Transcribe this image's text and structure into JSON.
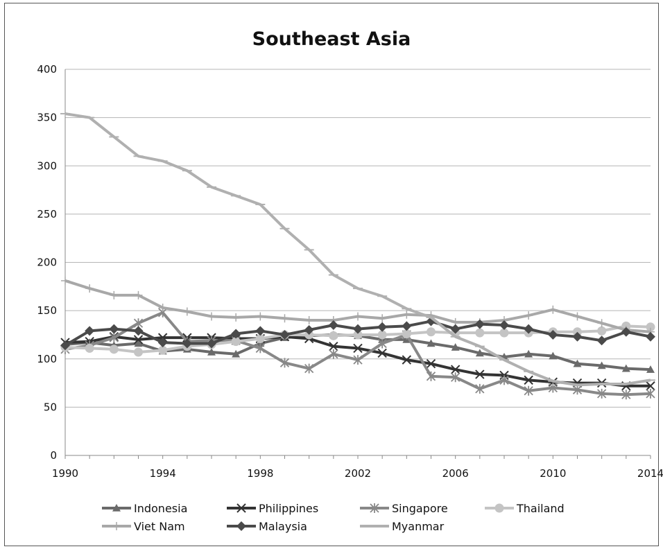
{
  "chart_data": {
    "type": "line",
    "title": "Southeast Asia",
    "xlabel": "",
    "ylabel": "",
    "xlim": [
      1990,
      2014
    ],
    "ylim": [
      0,
      400
    ],
    "x_ticks": [
      "1990",
      "1994",
      "1998",
      "2002",
      "2006",
      "2010",
      "2014"
    ],
    "y_ticks": [
      "0",
      "50",
      "100",
      "150",
      "200",
      "250",
      "300",
      "350",
      "400"
    ],
    "grid": "horizontal",
    "legend_position": "bottom",
    "x": [
      1990,
      1991,
      1992,
      1993,
      1994,
      1995,
      1996,
      1997,
      1998,
      1999,
      2000,
      2001,
      2002,
      2003,
      2004,
      2005,
      2006,
      2007,
      2008,
      2009,
      2010,
      2011,
      2012,
      2013,
      2014
    ],
    "series": [
      {
        "name": "Indonesia",
        "marker": "triangle",
        "color": "#6a6a6a",
        "values": [
          115,
          117,
          114,
          116,
          108,
          110,
          107,
          105,
          116,
          122,
          124,
          125,
          124,
          120,
          120,
          116,
          112,
          106,
          102,
          105,
          103,
          95,
          93,
          90,
          89
        ]
      },
      {
        "name": "Philippines",
        "marker": "x",
        "color": "#333333",
        "values": [
          117,
          118,
          123,
          120,
          122,
          122,
          122,
          121,
          121,
          123,
          121,
          113,
          111,
          106,
          99,
          95,
          89,
          84,
          83,
          78,
          76,
          75,
          75,
          72,
          72
        ]
      },
      {
        "name": "Singapore",
        "marker": "asterisk",
        "color": "#888888",
        "values": [
          110,
          114,
          122,
          137,
          148,
          118,
          119,
          119,
          111,
          96,
          90,
          105,
          99,
          116,
          125,
          82,
          81,
          69,
          78,
          67,
          70,
          68,
          64,
          63,
          64
        ]
      },
      {
        "name": "Thailand",
        "marker": "circle",
        "color": "#c4c4c4",
        "values": [
          112,
          111,
          110,
          107,
          109,
          113,
          115,
          118,
          121,
          125,
          125,
          124,
          125,
          125,
          126,
          128,
          127,
          127,
          127,
          127,
          128,
          128,
          129,
          134,
          133
        ]
      },
      {
        "name": "Viet Nam",
        "marker": "plus",
        "color": "#a8a8a8",
        "values": [
          181,
          173,
          166,
          166,
          153,
          149,
          144,
          143,
          144,
          142,
          140,
          140,
          144,
          142,
          146,
          145,
          138,
          138,
          140,
          145,
          151,
          144,
          137,
          130,
          128
        ]
      },
      {
        "name": "Malaysia",
        "marker": "diamond",
        "color": "#4a4a4a",
        "values": [
          114,
          129,
          131,
          129,
          117,
          116,
          116,
          126,
          129,
          125,
          130,
          135,
          131,
          133,
          134,
          139,
          131,
          136,
          135,
          131,
          125,
          123,
          119,
          128,
          123
        ]
      },
      {
        "name": "Myanmar",
        "marker": "dash",
        "color": "#b0b0b0",
        "values": [
          354,
          350,
          330,
          310,
          305,
          295,
          278,
          269,
          260,
          235,
          213,
          187,
          173,
          165,
          152,
          143,
          123,
          113,
          99,
          87,
          77,
          73,
          74,
          74,
          78
        ]
      }
    ]
  }
}
